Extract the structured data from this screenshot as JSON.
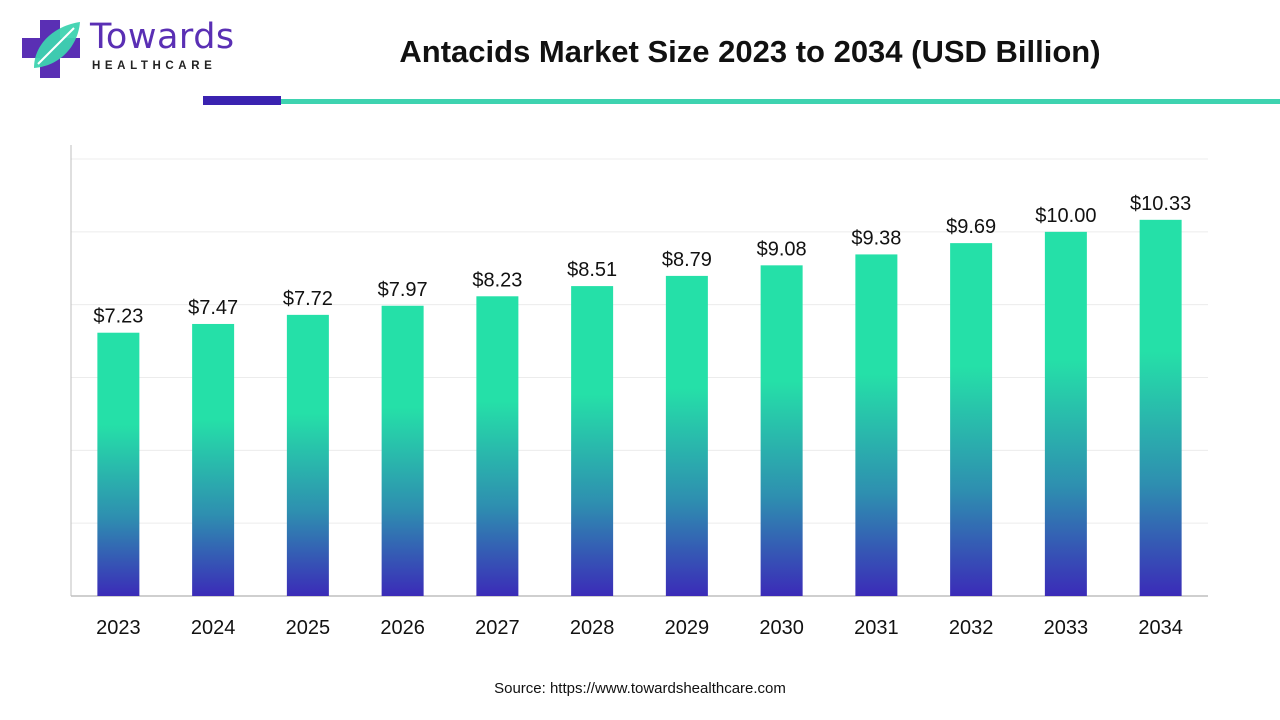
{
  "brand": {
    "name": "Towards",
    "tagline": "HEALTHCARE",
    "colors": {
      "primary": "#5a2fb4",
      "accent": "#3ed3b0"
    }
  },
  "title": "Antacids Market Size 2023 to 2034 (USD Billion)",
  "source": "Source: https://www.towardshealthcare.com",
  "chart_data": {
    "type": "bar",
    "title": "Antacids Market Size 2023 to 2034 (USD Billion)",
    "xlabel": "",
    "ylabel": "",
    "categories": [
      "2023",
      "2024",
      "2025",
      "2026",
      "2027",
      "2028",
      "2029",
      "2030",
      "2031",
      "2032",
      "2033",
      "2034"
    ],
    "values": [
      7.23,
      7.47,
      7.72,
      7.97,
      8.23,
      8.51,
      8.79,
      9.08,
      9.38,
      9.69,
      10.0,
      10.33
    ],
    "labels": [
      "$7.23",
      "$7.47",
      "$7.72",
      "$7.97",
      "$8.23",
      "$8.51",
      "$8.79",
      "$9.08",
      "$9.38",
      "$9.69",
      "$10.00",
      "$10.33"
    ],
    "ylim": [
      0,
      12
    ],
    "grid": true,
    "legend": "none",
    "colors": {
      "bar_top": "#25e0a8",
      "bar_mid": "#2e8fb0",
      "bar_bottom": "#3b2bb8",
      "grid": "#ececec",
      "axis": "#bfbfbf"
    }
  }
}
